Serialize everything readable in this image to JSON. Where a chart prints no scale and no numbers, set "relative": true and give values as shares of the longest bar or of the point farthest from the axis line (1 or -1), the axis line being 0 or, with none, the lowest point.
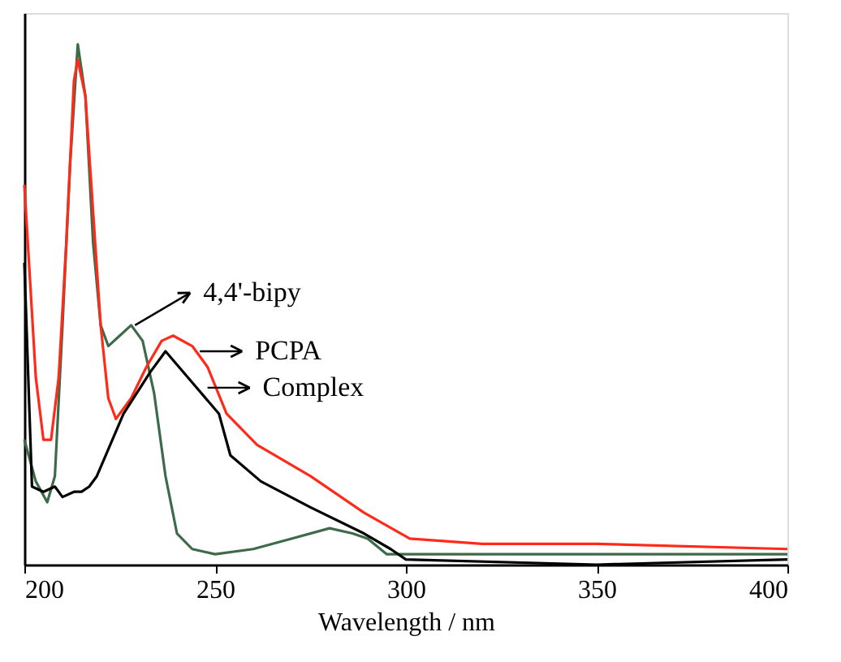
{
  "chart_data": {
    "type": "line",
    "relative": true,
    "xlabel": "Wavelength / nm",
    "xlim": [
      200,
      400
    ],
    "xticks": [
      200,
      250,
      300,
      350,
      400
    ],
    "grid": false,
    "legend": false,
    "marker": "none",
    "line_style": "solid",
    "series": [
      {
        "color": "#3d6b4a",
        "x": [
          200,
          203,
          206,
          208,
          210,
          212,
          214,
          216,
          218,
          220,
          222,
          225,
          228,
          231,
          234,
          237,
          240,
          244,
          250,
          260,
          270,
          280,
          286,
          290,
          295,
          300,
          350,
          400
        ],
        "values": [
          0.24,
          0.16,
          0.12,
          0.17,
          0.46,
          0.77,
          1.0,
          0.9,
          0.62,
          0.46,
          0.42,
          0.44,
          0.46,
          0.43,
          0.33,
          0.17,
          0.06,
          0.03,
          0.02,
          0.03,
          0.05,
          0.07,
          0.06,
          0.05,
          0.02,
          0.02,
          0.02,
          0.02
        ]
      },
      {
        "color": "#ff2a1a",
        "x": [
          200,
          203,
          205,
          207,
          209,
          211,
          213,
          214,
          216,
          218,
          220,
          222,
          224,
          228,
          232,
          236,
          239,
          244,
          248,
          253,
          261,
          275,
          289,
          301,
          320,
          350,
          400
        ],
        "values": [
          0.73,
          0.36,
          0.24,
          0.24,
          0.36,
          0.62,
          0.93,
          0.97,
          0.9,
          0.68,
          0.46,
          0.32,
          0.28,
          0.32,
          0.38,
          0.43,
          0.44,
          0.42,
          0.38,
          0.29,
          0.23,
          0.17,
          0.1,
          0.05,
          0.04,
          0.04,
          0.03
        ]
      },
      {
        "color": "#000000",
        "x": [
          200,
          202,
          205,
          208,
          210,
          213,
          215,
          217,
          219,
          226,
          233,
          237,
          244,
          251,
          254,
          262,
          275,
          289,
          296,
          300,
          350,
          400
        ],
        "values": [
          0.58,
          0.15,
          0.14,
          0.15,
          0.13,
          0.14,
          0.14,
          0.15,
          0.17,
          0.29,
          0.37,
          0.41,
          0.35,
          0.29,
          0.21,
          0.16,
          0.11,
          0.06,
          0.03,
          0.01,
          0.0,
          0.01
        ]
      }
    ],
    "annotations": [
      {
        "text": "4,4'-bipy",
        "x": 229,
        "y": 0.46
      },
      {
        "text": "PCPA",
        "x": 246,
        "y": 0.41
      },
      {
        "text": "Complex",
        "x": 248,
        "y": 0.34
      }
    ]
  }
}
